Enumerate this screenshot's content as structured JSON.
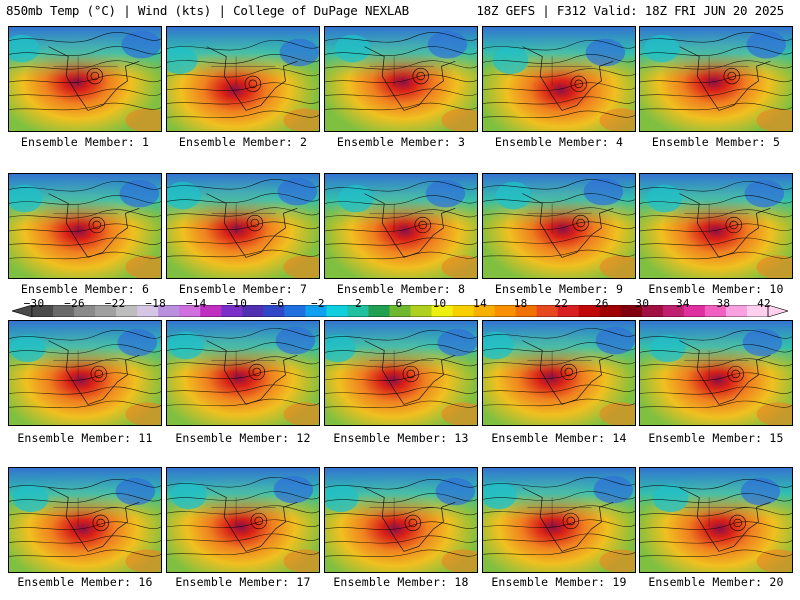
{
  "header": {
    "left": "850mb Temp (°C) | Wind (kts) | College of DuPage NEXLAB",
    "right": "18Z GEFS | F312 Valid: 18Z FRI JUN 20 2025"
  },
  "members": [
    {
      "label": "Ensemble Member: 1"
    },
    {
      "label": "Ensemble Member: 2"
    },
    {
      "label": "Ensemble Member: 3"
    },
    {
      "label": "Ensemble Member: 4"
    },
    {
      "label": "Ensemble Member: 5"
    },
    {
      "label": "Ensemble Member: 6"
    },
    {
      "label": "Ensemble Member: 7"
    },
    {
      "label": "Ensemble Member: 8"
    },
    {
      "label": "Ensemble Member: 9"
    },
    {
      "label": "Ensemble Member: 10"
    },
    {
      "label": "Ensemble Member: 11"
    },
    {
      "label": "Ensemble Member: 12"
    },
    {
      "label": "Ensemble Member: 13"
    },
    {
      "label": "Ensemble Member: 14"
    },
    {
      "label": "Ensemble Member: 15"
    },
    {
      "label": "Ensemble Member: 16"
    },
    {
      "label": "Ensemble Member: 17"
    },
    {
      "label": "Ensemble Member: 18"
    },
    {
      "label": "Ensemble Member: 19"
    },
    {
      "label": "Ensemble Member: 20"
    }
  ],
  "colorbar": {
    "ticks": [
      "−30",
      "−26",
      "−22",
      "−18",
      "−14",
      "−10",
      "−6",
      "−2",
      "2",
      "6",
      "10",
      "14",
      "18",
      "22",
      "26",
      "30",
      "34",
      "38",
      "42"
    ],
    "colors": [
      "#4a4a4a",
      "#6a6a6a",
      "#8a8a8a",
      "#a0a0a0",
      "#bdbdbd",
      "#d5c6e6",
      "#b990dd",
      "#d070e0",
      "#c030c0",
      "#7a30c8",
      "#5030b0",
      "#3048c8",
      "#2070e0",
      "#10a0f0",
      "#10d0e0",
      "#20c0a0",
      "#20a050",
      "#70b830",
      "#b0d020",
      "#f0f010",
      "#f8d000",
      "#f8b000",
      "#f89000",
      "#f07000",
      "#e84820",
      "#d82020",
      "#c00808",
      "#a00000",
      "#800010",
      "#a01040",
      "#c02070",
      "#e030a0",
      "#f060c0",
      "#f8a0e0",
      "#ffd0f0"
    ]
  },
  "map_colors": {
    "cold": "#2f6fd8",
    "cool": "#20c0c8",
    "mild": "#80c040",
    "warm": "#f0c020",
    "hot": "#f08020",
    "very_hot": "#d82018",
    "extreme": "#8a1048",
    "contour": "#000000"
  }
}
